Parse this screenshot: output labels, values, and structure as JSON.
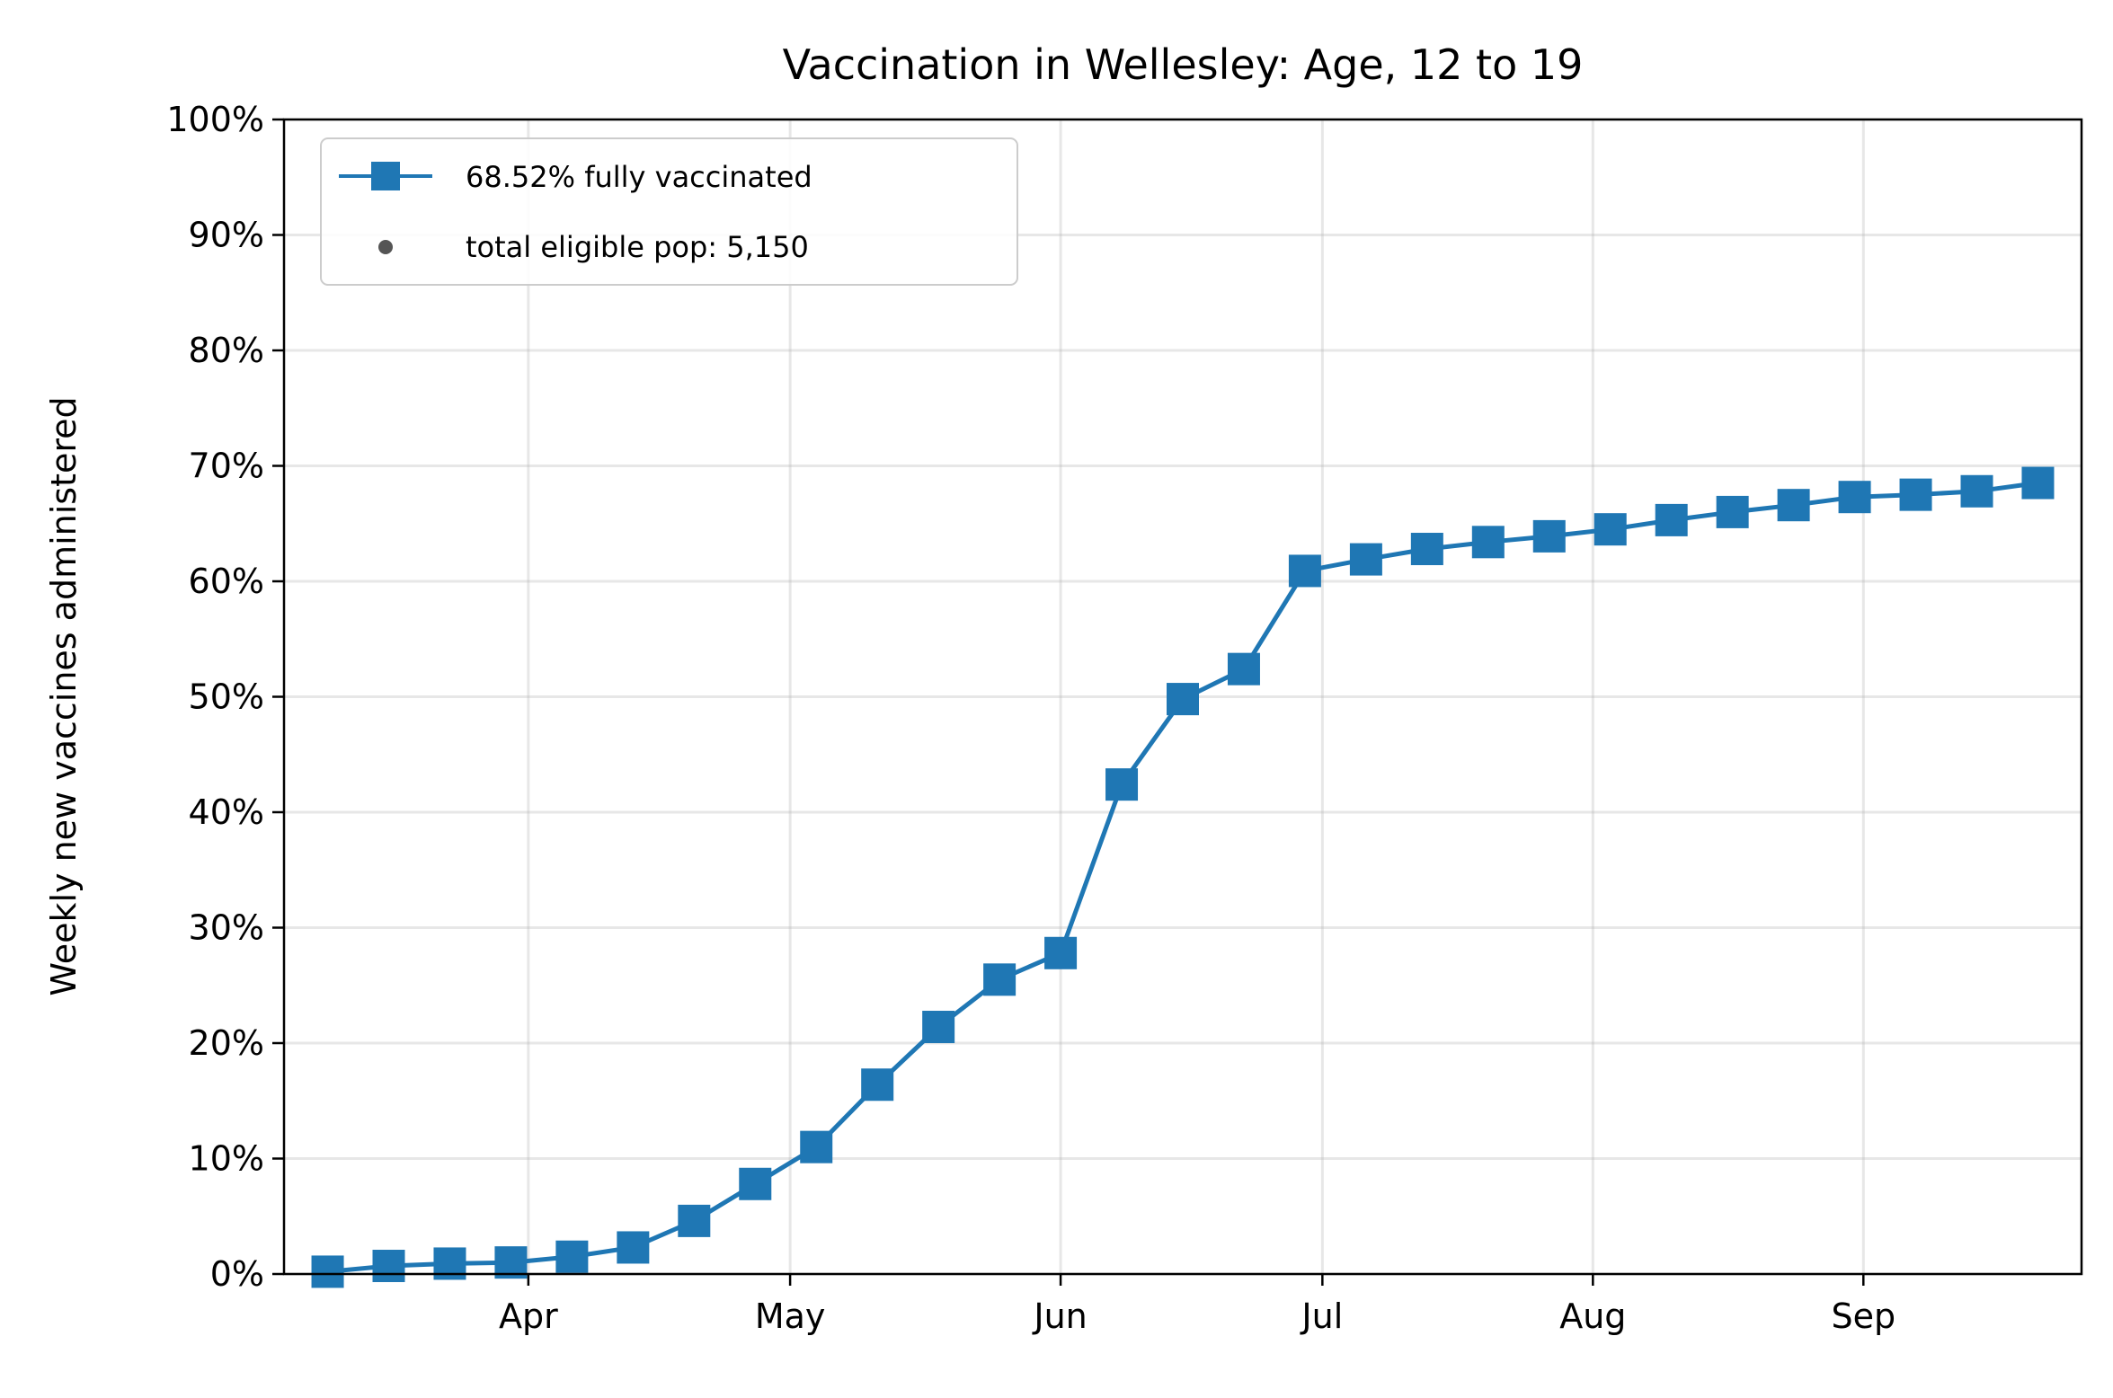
{
  "chart_data": {
    "type": "line",
    "title": "Vaccination in Wellesley: Age, 12 to 19",
    "xlabel": "",
    "ylabel": "Weekly new vaccines administered",
    "ylim": [
      0,
      100
    ],
    "xlim": [
      "2021-03-04",
      "2021-09-26"
    ],
    "y_ticks": [
      0,
      10,
      20,
      30,
      40,
      50,
      60,
      70,
      80,
      90,
      100
    ],
    "y_tick_labels": [
      "0%",
      "10%",
      "20%",
      "30%",
      "40%",
      "50%",
      "60%",
      "70%",
      "80%",
      "90%",
      "100%"
    ],
    "x_ticks": [
      {
        "date": "2021-04-01",
        "label": "Apr"
      },
      {
        "date": "2021-05-01",
        "label": "May"
      },
      {
        "date": "2021-06-01",
        "label": "Jun"
      },
      {
        "date": "2021-07-01",
        "label": "Jul"
      },
      {
        "date": "2021-08-01",
        "label": "Aug"
      },
      {
        "date": "2021-09-01",
        "label": "Sep"
      }
    ],
    "grid": true,
    "legend_position": "top-left",
    "legend_entries": [
      "68.52% fully vaccinated",
      "total eligible pop: 5,150"
    ],
    "series": [
      {
        "name": "68.52% fully vaccinated",
        "color": "#1f77b4",
        "marker": "square",
        "x": [
          "2021-03-09",
          "2021-03-16",
          "2021-03-23",
          "2021-03-30",
          "2021-04-06",
          "2021-04-13",
          "2021-04-20",
          "2021-04-27",
          "2021-05-04",
          "2021-05-11",
          "2021-05-18",
          "2021-05-25",
          "2021-06-01",
          "2021-06-08",
          "2021-06-15",
          "2021-06-22",
          "2021-06-29",
          "2021-07-06",
          "2021-07-13",
          "2021-07-20",
          "2021-07-27",
          "2021-08-03",
          "2021-08-10",
          "2021-08-17",
          "2021-08-24",
          "2021-08-31",
          "2021-09-07",
          "2021-09-14",
          "2021-09-21"
        ],
        "values": [
          0.2,
          0.7,
          0.9,
          1.0,
          1.5,
          2.3,
          4.6,
          7.8,
          11.0,
          16.4,
          21.4,
          25.5,
          27.8,
          42.4,
          49.8,
          52.4,
          60.9,
          61.9,
          62.8,
          63.4,
          63.9,
          64.5,
          65.3,
          66.0,
          66.6,
          67.3,
          67.5,
          67.8,
          68.52
        ]
      }
    ],
    "legend_marker_color": "#555555"
  }
}
